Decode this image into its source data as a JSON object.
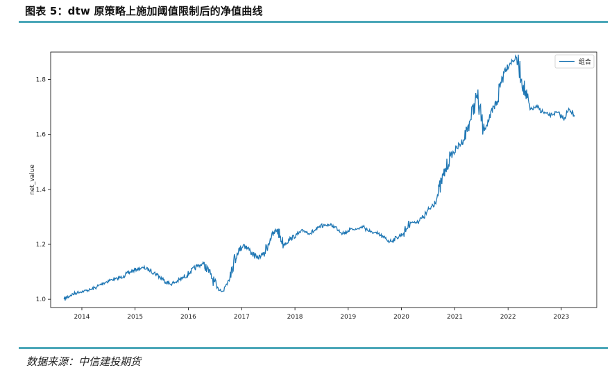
{
  "header": {
    "title": "图表 5：dtw 原策略上施加阈值限制后的净值曲线"
  },
  "footer": {
    "source": "数据来源：中信建投期货"
  },
  "colors": {
    "rule": "#4aa6b8",
    "line": "#1f77b4"
  },
  "chart_data": {
    "type": "line",
    "title": "",
    "xlabel": "",
    "ylabel": "net_value",
    "xlim": [
      "2013-06-01",
      "2023-09-01"
    ],
    "ylim": [
      0.97,
      1.9
    ],
    "x_ticks": [
      "2014",
      "2015",
      "2016",
      "2017",
      "2018",
      "2019",
      "2020",
      "2021",
      "2022",
      "2023"
    ],
    "y_ticks": [
      "1.0",
      "1.2",
      "1.4",
      "1.6",
      "1.8"
    ],
    "legend": {
      "position": "top-right",
      "entries": [
        "组合"
      ]
    },
    "grid": false,
    "series": [
      {
        "name": "组合",
        "x": [
          "2013-09-01",
          "2013-10-15",
          "2013-12-01",
          "2014-01-15",
          "2014-03-01",
          "2014-04-15",
          "2014-06-01",
          "2014-07-15",
          "2014-09-01",
          "2014-10-15",
          "2014-12-01",
          "2015-01-15",
          "2015-03-01",
          "2015-04-15",
          "2015-06-01",
          "2015-07-15",
          "2015-09-01",
          "2015-10-15",
          "2015-12-01",
          "2016-01-15",
          "2016-03-01",
          "2016-04-15",
          "2016-06-01",
          "2016-07-15",
          "2016-09-01",
          "2016-10-15",
          "2016-12-01",
          "2017-01-15",
          "2017-03-01",
          "2017-04-15",
          "2017-06-01",
          "2017-07-15",
          "2017-09-01",
          "2017-10-15",
          "2017-12-01",
          "2018-01-15",
          "2018-03-01",
          "2018-04-15",
          "2018-06-01",
          "2018-07-15",
          "2018-09-01",
          "2018-10-15",
          "2018-12-01",
          "2019-01-15",
          "2019-03-01",
          "2019-04-15",
          "2019-06-01",
          "2019-07-15",
          "2019-09-01",
          "2019-10-15",
          "2019-12-01",
          "2020-01-15",
          "2020-03-01",
          "2020-04-15",
          "2020-06-01",
          "2020-07-15",
          "2020-09-01",
          "2020-10-15",
          "2020-12-01",
          "2021-01-15",
          "2021-03-01",
          "2021-04-15",
          "2021-06-01",
          "2021-07-15",
          "2021-09-01",
          "2021-10-15",
          "2021-12-01",
          "2022-01-15",
          "2022-03-01",
          "2022-04-15",
          "2022-06-01",
          "2022-07-15",
          "2022-09-01",
          "2022-10-15",
          "2022-12-01",
          "2023-01-15",
          "2023-03-01",
          "2023-04-01"
        ],
        "values": [
          1.0,
          1.015,
          1.025,
          1.03,
          1.035,
          1.045,
          1.06,
          1.07,
          1.075,
          1.085,
          1.1,
          1.11,
          1.115,
          1.105,
          1.09,
          1.07,
          1.055,
          1.065,
          1.08,
          1.1,
          1.12,
          1.13,
          1.09,
          1.04,
          1.03,
          1.1,
          1.17,
          1.2,
          1.175,
          1.15,
          1.165,
          1.22,
          1.255,
          1.2,
          1.22,
          1.235,
          1.25,
          1.24,
          1.255,
          1.27,
          1.27,
          1.26,
          1.24,
          1.255,
          1.255,
          1.265,
          1.245,
          1.24,
          1.225,
          1.21,
          1.225,
          1.24,
          1.28,
          1.28,
          1.3,
          1.33,
          1.37,
          1.45,
          1.52,
          1.55,
          1.58,
          1.65,
          1.74,
          1.62,
          1.66,
          1.72,
          1.83,
          1.86,
          1.88,
          1.78,
          1.69,
          1.7,
          1.68,
          1.67,
          1.68,
          1.66,
          1.69,
          1.67
        ]
      }
    ]
  }
}
